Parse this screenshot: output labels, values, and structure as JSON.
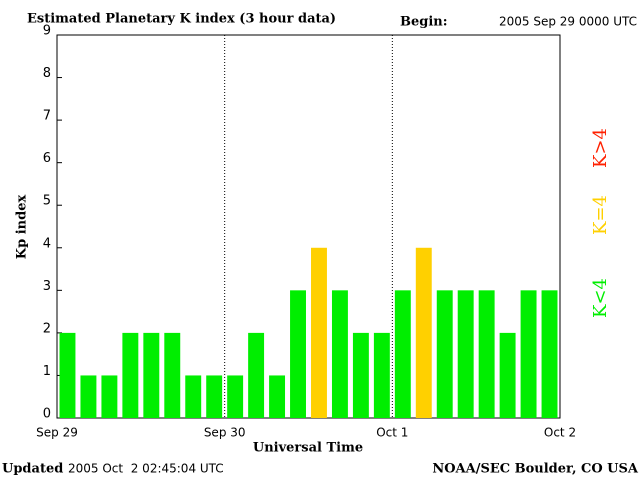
{
  "chart_data": {
    "type": "bar",
    "title": "Estimated Planetary K index (3 hour data)",
    "begin_label": "Begin:",
    "begin_time": "2005 Sep 29 0000 UTC",
    "y_label": "Kp index",
    "x_label": "Universal Time",
    "updated_label": "Updated",
    "updated_time": "2005 Oct  2 02:45:04 UTC",
    "source": "NOAA/SEC Boulder, CO USA",
    "categories": [
      null,
      null,
      null,
      null,
      null,
      null,
      null,
      null,
      null,
      null,
      null,
      null,
      null,
      null,
      null,
      null,
      null,
      null,
      null,
      null,
      null,
      null,
      null,
      null
    ],
    "values": [
      2,
      1,
      1,
      2,
      2,
      2,
      1,
      1,
      1,
      2,
      1,
      3,
      4,
      3,
      2,
      2,
      3,
      4,
      3,
      3,
      3,
      2,
      3,
      3
    ],
    "colors": [
      "#00ee00",
      "#00ee00",
      "#00ee00",
      "#00ee00",
      "#00ee00",
      "#00ee00",
      "#00ee00",
      "#00ee00",
      "#00ee00",
      "#00ee00",
      "#00ee00",
      "#00ee00",
      "#ffd000",
      "#00ee00",
      "#00ee00",
      "#00ee00",
      "#00ee00",
      "#ffd000",
      "#00ee00",
      "#00ee00",
      "#00ee00",
      "#00ee00",
      "#00ee00",
      "#00ee00"
    ],
    "ylim": [
      0,
      9
    ],
    "yticks": [
      0,
      1,
      2,
      3,
      4,
      5,
      6,
      7,
      8,
      9
    ],
    "xlim": [
      0,
      24
    ],
    "xticks": [
      {
        "value": 0,
        "label": "Sep 29"
      },
      {
        "value": 8,
        "label": "Sep 30"
      },
      {
        "value": 16,
        "label": "Oct 1"
      },
      {
        "value": 24,
        "label": "Oct 2"
      }
    ],
    "legend": [
      {
        "label": "K<4",
        "color": "#00ee00"
      },
      {
        "label": "K=4",
        "color": "#ffd000"
      },
      {
        "label": "K>4",
        "color": "#ff2000"
      }
    ]
  }
}
